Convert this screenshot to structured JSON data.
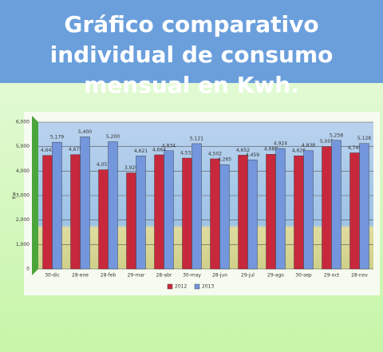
{
  "chart_data": {
    "type": "bar",
    "title": "Gráfico comparativo individual de consumo mensual en Kwh.",
    "y_label": "Kw",
    "categories": [
      "30-dic",
      "28-ene",
      "28-feb",
      "29-mar",
      "28-abr",
      "30-may",
      "28-jun",
      "29-jul",
      "29-ago",
      "30-sep",
      "29-oct",
      "28-nov"
    ],
    "series": [
      {
        "name": "2012",
        "color": "#c8283c",
        "values": [
          4642,
          4675,
          4057,
          3929,
          4664,
          4532,
          4502,
          4652,
          4688,
          4626,
          5005,
          4745
        ],
        "value_labels": [
          "4,642",
          "4,675",
          "4,057",
          "3,929",
          "4,664",
          "4,532",
          "4,502",
          "4,652",
          "4,688",
          "4,626",
          "5,005",
          "4,745"
        ]
      },
      {
        "name": "2013",
        "color": "#7396dc",
        "values": [
          5179,
          5400,
          5200,
          4621,
          4834,
          5121,
          4265,
          4459,
          4924,
          4838,
          5258,
          5128
        ],
        "value_labels": [
          "5,179",
          "5,400",
          "5,200",
          "4,621",
          "4,834",
          "5,121",
          "4,265",
          "4,459",
          "4,924",
          "4,838",
          "5,258",
          "5,128"
        ]
      }
    ],
    "ylim": [
      0,
      6000
    ],
    "yticks": [
      0,
      {
        "value": 1000,
        "label": "1,000"
      },
      {
        "value": 2000,
        "label": "2,000"
      },
      {
        "value": 3000,
        "label": "3,000"
      },
      {
        "value": 4000,
        "label": "4,000"
      },
      {
        "value": 5000,
        "label": "5,000"
      },
      {
        "value": 6000,
        "label": "6,000"
      }
    ],
    "grid": true
  }
}
